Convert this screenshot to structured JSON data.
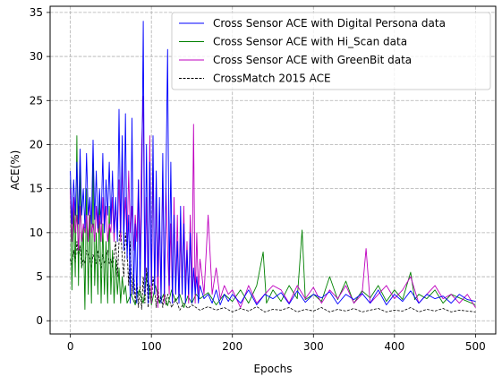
{
  "chart_data": {
    "type": "line",
    "title": "",
    "xlabel": "Epochs",
    "ylabel": "ACE(%)",
    "xlim": [
      -25,
      525
    ],
    "ylim": [
      -1.5,
      35.7
    ],
    "xticks": [
      0,
      100,
      200,
      300,
      400,
      500
    ],
    "yticks": [
      0,
      5,
      10,
      15,
      20,
      25,
      30,
      35
    ],
    "grid": true,
    "legend_position": "top-right",
    "series": [
      {
        "name": "Cross Sensor ACE with Digital Persona data",
        "color": "#0000ff",
        "style": "solid",
        "x": [
          0,
          2,
          4,
          6,
          8,
          10,
          12,
          14,
          16,
          18,
          20,
          22,
          24,
          26,
          28,
          30,
          32,
          34,
          36,
          38,
          40,
          42,
          44,
          46,
          48,
          50,
          52,
          54,
          56,
          58,
          60,
          62,
          64,
          66,
          68,
          70,
          72,
          74,
          76,
          78,
          80,
          82,
          84,
          86,
          88,
          90,
          92,
          94,
          96,
          98,
          100,
          102,
          104,
          106,
          108,
          110,
          112,
          114,
          116,
          118,
          120,
          122,
          124,
          126,
          128,
          130,
          132,
          134,
          136,
          138,
          140,
          142,
          144,
          146,
          148,
          150,
          152,
          154,
          156,
          158,
          160,
          165,
          170,
          175,
          180,
          185,
          190,
          195,
          200,
          210,
          220,
          230,
          240,
          250,
          260,
          270,
          280,
          290,
          300,
          310,
          320,
          330,
          340,
          350,
          360,
          370,
          380,
          390,
          400,
          410,
          420,
          430,
          440,
          450,
          460,
          470,
          480,
          490,
          500
        ],
        "values": [
          17,
          11,
          16,
          12,
          18,
          11,
          19.5,
          12,
          15,
          10.5,
          19,
          12,
          14,
          11,
          20.5,
          11.5,
          17,
          10.5,
          15,
          11,
          19,
          10,
          16,
          12,
          18,
          11,
          17,
          10,
          14,
          9,
          24,
          10,
          21,
          8,
          23.5,
          7,
          12,
          2,
          23,
          3,
          11,
          2,
          16,
          4,
          13,
          34,
          3,
          20,
          2,
          18,
          4,
          21,
          3,
          17,
          5,
          14,
          2,
          19,
          3,
          16,
          30.8,
          4,
          18,
          2,
          12,
          3,
          9,
          2,
          13,
          3,
          11,
          2,
          8,
          3,
          10,
          2,
          6,
          3,
          5,
          2,
          4,
          2.5,
          3,
          2,
          3.5,
          1.8,
          3,
          2.2,
          3,
          2,
          3.5,
          1.8,
          3,
          2.5,
          3.2,
          1.9,
          3.4,
          2.1,
          3,
          2.6,
          3.3,
          1.9,
          3,
          2.4,
          3.1,
          2,
          3.5,
          1.8,
          3,
          2.2,
          3.4,
          2,
          3,
          2.5,
          2.8,
          2,
          3,
          2.4,
          2.2
        ]
      },
      {
        "name": "Cross Sensor ACE with Hi_Scan data",
        "color": "#008000",
        "style": "solid",
        "x": [
          0,
          2,
          4,
          6,
          8,
          10,
          12,
          14,
          16,
          18,
          20,
          22,
          24,
          26,
          28,
          30,
          32,
          34,
          36,
          38,
          40,
          42,
          44,
          46,
          48,
          50,
          52,
          54,
          56,
          58,
          60,
          62,
          64,
          66,
          68,
          70,
          75,
          80,
          85,
          90,
          95,
          100,
          105,
          110,
          115,
          120,
          125,
          130,
          135,
          140,
          145,
          150,
          155,
          160,
          170,
          180,
          190,
          200,
          210,
          220,
          230,
          238,
          242,
          250,
          260,
          270,
          280,
          286,
          290,
          300,
          310,
          320,
          330,
          340,
          350,
          360,
          370,
          380,
          390,
          400,
          410,
          420,
          425,
          430,
          440,
          450,
          460,
          470,
          480,
          490,
          500
        ],
        "values": [
          16,
          3.5,
          13,
          5,
          21,
          4,
          18,
          6,
          11,
          1.3,
          15,
          3,
          12,
          2,
          19,
          4,
          10,
          3,
          14,
          2,
          11,
          3,
          9,
          2,
          13,
          3,
          8,
          2,
          7,
          3,
          6,
          2,
          5,
          3,
          4,
          2,
          3,
          1.8,
          3.5,
          2,
          5.5,
          1.8,
          4,
          2,
          3,
          1.7,
          3.5,
          2.2,
          3,
          1.5,
          2.8,
          2,
          3,
          2.5,
          3.2,
          1.8,
          3,
          2.2,
          3.5,
          2,
          4,
          7.8,
          2,
          3.5,
          2.2,
          4,
          2.5,
          10.3,
          2.4,
          3,
          2.2,
          5,
          2.4,
          4.5,
          2,
          3.4,
          2.6,
          4,
          2.2,
          3.5,
          2.4,
          5.5,
          2.4,
          3,
          2.5,
          3.5,
          2,
          3,
          2.6,
          2.2,
          1.8
        ]
      },
      {
        "name": "Cross Sensor ACE with GreenBit data",
        "color": "#bf00bf",
        "style": "solid",
        "x": [
          0,
          2,
          4,
          6,
          8,
          10,
          12,
          14,
          16,
          18,
          20,
          22,
          24,
          26,
          28,
          30,
          32,
          34,
          36,
          38,
          40,
          42,
          44,
          46,
          48,
          50,
          52,
          54,
          56,
          58,
          60,
          62,
          64,
          66,
          68,
          70,
          72,
          74,
          76,
          78,
          80,
          82,
          84,
          86,
          88,
          90,
          92,
          94,
          96,
          98,
          100,
          102,
          104,
          106,
          108,
          110,
          112,
          114,
          116,
          118,
          120,
          122,
          124,
          126,
          128,
          130,
          132,
          134,
          136,
          138,
          140,
          142,
          144,
          146,
          148,
          150,
          152,
          154,
          156,
          158,
          160,
          165,
          170,
          175,
          180,
          185,
          190,
          195,
          200,
          210,
          220,
          230,
          240,
          250,
          260,
          270,
          280,
          290,
          300,
          310,
          320,
          330,
          340,
          350,
          360,
          365,
          370,
          380,
          390,
          400,
          410,
          420,
          430,
          440,
          450,
          460,
          470,
          480,
          490,
          500
        ],
        "values": [
          15,
          9,
          14,
          10,
          12,
          8,
          13,
          9,
          11,
          10,
          12,
          9,
          14,
          10,
          11,
          9,
          13,
          10,
          12,
          9,
          14,
          10,
          13,
          9,
          11,
          10,
          14,
          9,
          13,
          10,
          16,
          9,
          18,
          10,
          14,
          9,
          17,
          10,
          13,
          8,
          12,
          9,
          16,
          7,
          20,
          25.5,
          3,
          14,
          3,
          21,
          2,
          18,
          3,
          15,
          1.5,
          12,
          3,
          17,
          2,
          15,
          8,
          3,
          11,
          2,
          14,
          3,
          12,
          2,
          10,
          3,
          13,
          4,
          9,
          2,
          12,
          3,
          22.3,
          2,
          10,
          3,
          7,
          3,
          12,
          3,
          6,
          2.5,
          4,
          3,
          3.5,
          1.5,
          4,
          2,
          3,
          4,
          3.5,
          2,
          4,
          2.5,
          3.8,
          2,
          3.5,
          2.5,
          4,
          2,
          3,
          8.2,
          2,
          3,
          4,
          2.5,
          3.5,
          5,
          2,
          3,
          4,
          2.5,
          3,
          2,
          3,
          1.5
        ]
      },
      {
        "name": "CrossMatch 2015 ACE",
        "color": "#000000",
        "style": "dashed",
        "x": [
          0,
          2,
          4,
          6,
          8,
          10,
          12,
          14,
          16,
          18,
          20,
          22,
          24,
          26,
          28,
          30,
          32,
          34,
          36,
          38,
          40,
          42,
          44,
          46,
          48,
          50,
          52,
          54,
          56,
          58,
          60,
          62,
          64,
          66,
          68,
          70,
          72,
          74,
          76,
          78,
          80,
          82,
          84,
          86,
          88,
          90,
          92,
          94,
          96,
          98,
          100,
          102,
          104,
          106,
          108,
          110,
          112,
          114,
          116,
          118,
          120,
          125,
          130,
          135,
          140,
          145,
          150,
          160,
          170,
          180,
          190,
          200,
          210,
          220,
          230,
          240,
          250,
          260,
          270,
          280,
          290,
          300,
          310,
          320,
          330,
          340,
          350,
          360,
          370,
          380,
          390,
          400,
          410,
          420,
          430,
          440,
          450,
          460,
          470,
          480,
          490,
          500
        ],
        "values": [
          7,
          6,
          8,
          6.5,
          9,
          7,
          8.5,
          6,
          7,
          6.5,
          8,
          7.5,
          7,
          6,
          7.5,
          7,
          6.5,
          8,
          7,
          6,
          7.5,
          6.5,
          7,
          8,
          6.5,
          7,
          6,
          7.5,
          9,
          5,
          9,
          11,
          7,
          5,
          10,
          8,
          4,
          9,
          3,
          6,
          2,
          5,
          1.5,
          4,
          1.3,
          5,
          2,
          6,
          1.5,
          4,
          2,
          5,
          3.5,
          1.5,
          4,
          2,
          3,
          1.5,
          3.5,
          1.8,
          3,
          1.5,
          2.5,
          1.2,
          2,
          1.4,
          1.8,
          1.2,
          1.6,
          1.2,
          1.5,
          1,
          1.4,
          1.1,
          1.6,
          1,
          1.3,
          1.2,
          1.5,
          1,
          1.3,
          1.1,
          1.5,
          1,
          1.3,
          1.1,
          1.4,
          1,
          1.2,
          1.4,
          1,
          1.2,
          1.1,
          1.5,
          1,
          1.3,
          1.1,
          1.4,
          1,
          1.2,
          1.1,
          1
        ]
      }
    ]
  }
}
